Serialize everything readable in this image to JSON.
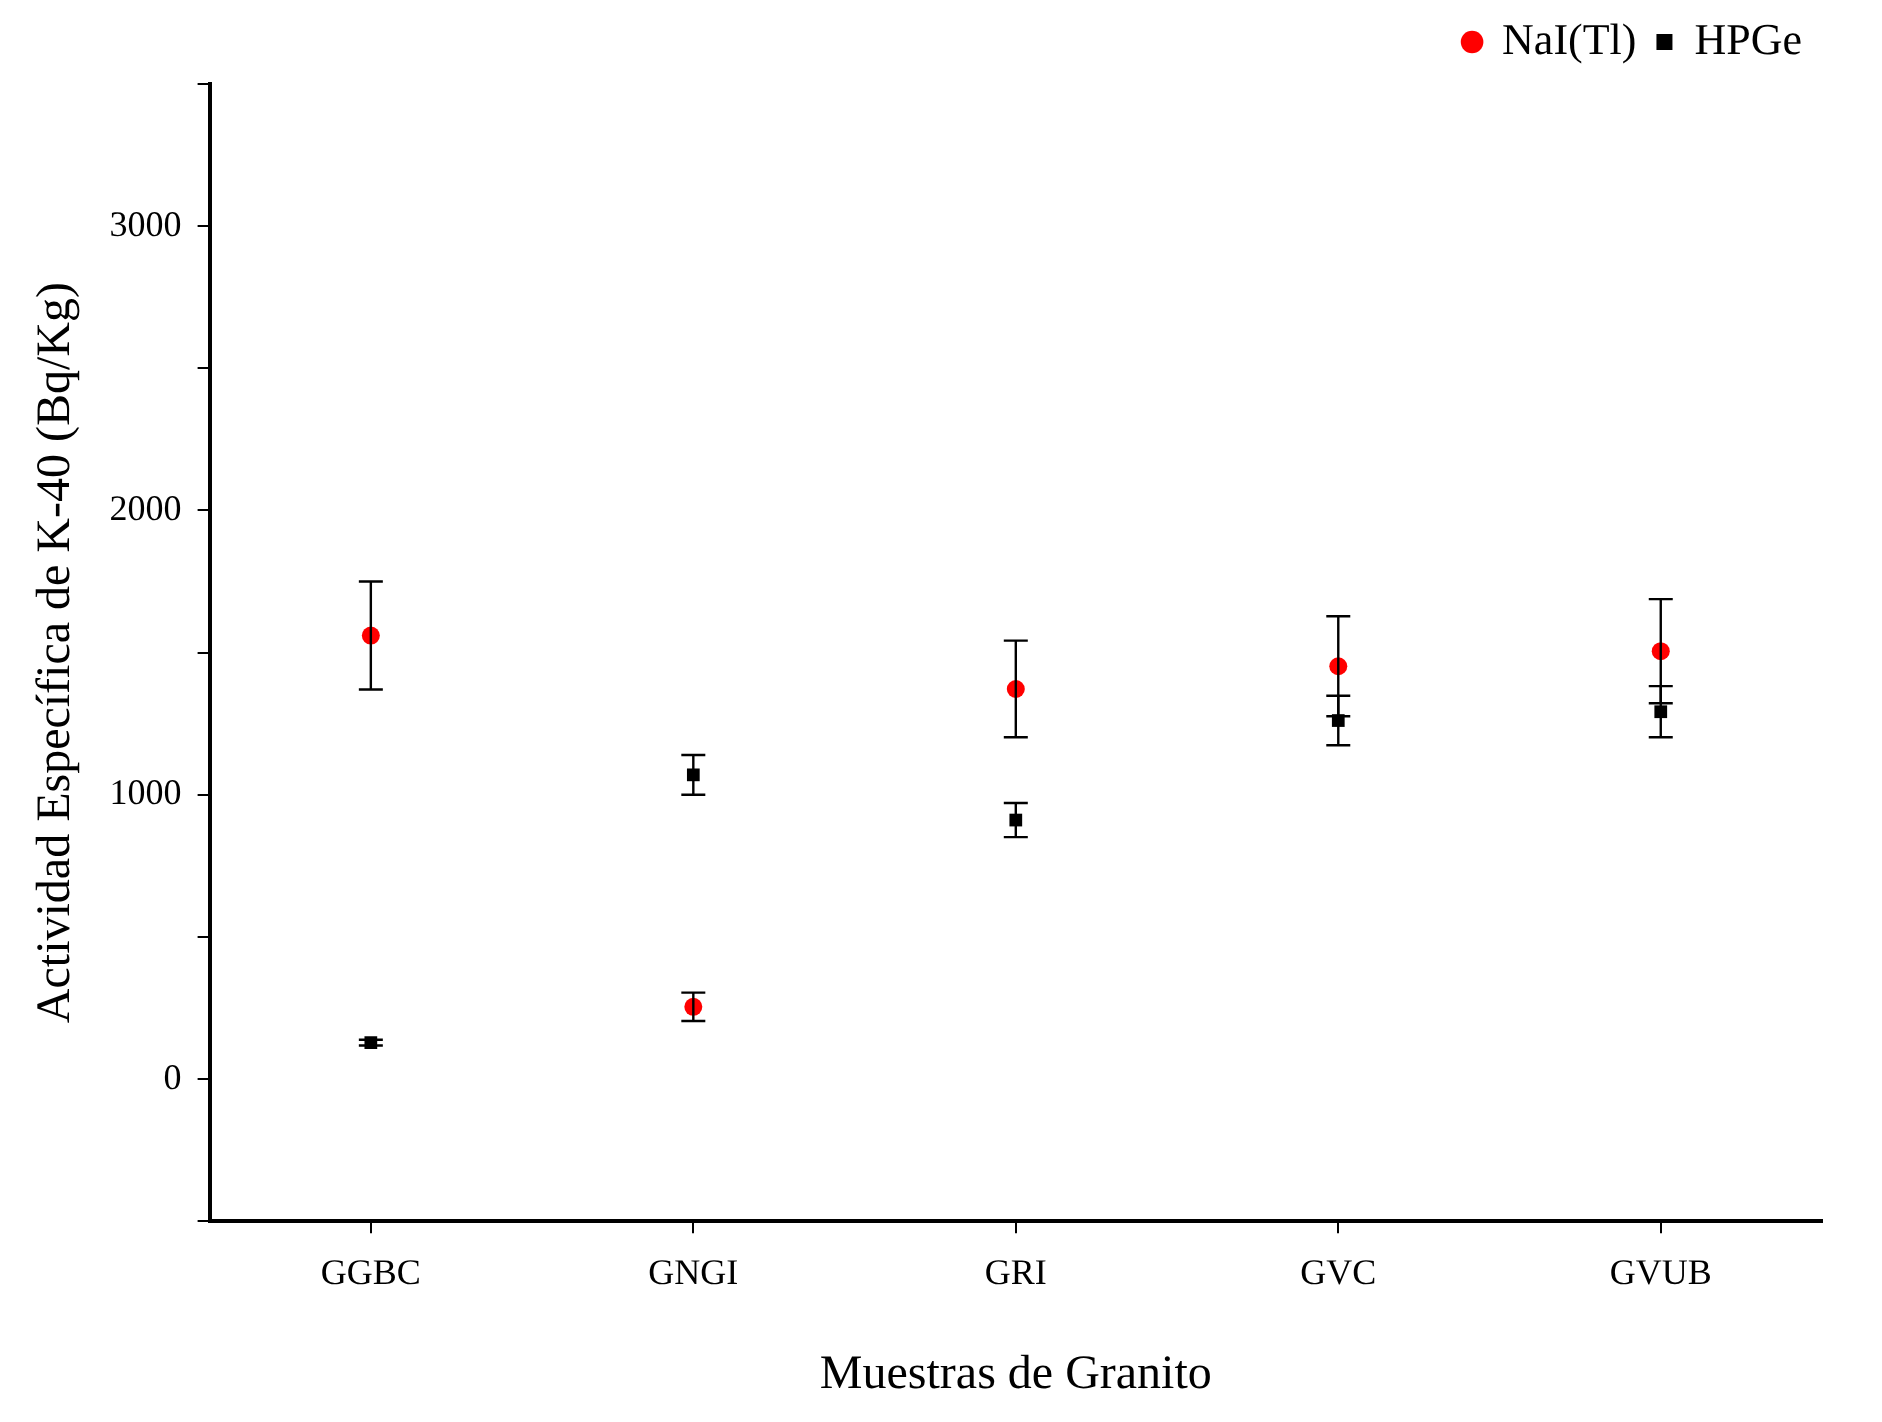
{
  "chart_data": {
    "type": "scatter",
    "xlabel": "Muestras de Granito",
    "ylabel": "Actividad Específica de K-40 (Bq/Kg)",
    "categories": [
      "GGBC",
      "GNGI",
      "GRI",
      "GVC",
      "GVUB"
    ],
    "series": [
      {
        "name": "NaI(Tl)",
        "color": "#ff0000",
        "marker": "circle",
        "values": [
          1560,
          254,
          1372,
          1452,
          1505
        ],
        "errors": [
          190,
          50,
          170,
          176,
          183
        ]
      },
      {
        "name": "HPGe",
        "color": "#000000",
        "marker": "square",
        "values": [
          128,
          1070,
          911,
          1261,
          1292
        ],
        "errors": [
          10,
          70,
          60,
          87,
          90
        ]
      }
    ],
    "ylim": [
      -500,
      3500
    ],
    "yticks": [
      {
        "value": -500,
        "label": null
      },
      0,
      {
        "value": 500,
        "label": null
      },
      1000,
      {
        "value": 1500,
        "label": null
      },
      2000,
      {
        "value": 2500,
        "label": null
      },
      3000,
      {
        "value": 3500,
        "label": null
      }
    ],
    "grid": false,
    "legend": "top right"
  }
}
